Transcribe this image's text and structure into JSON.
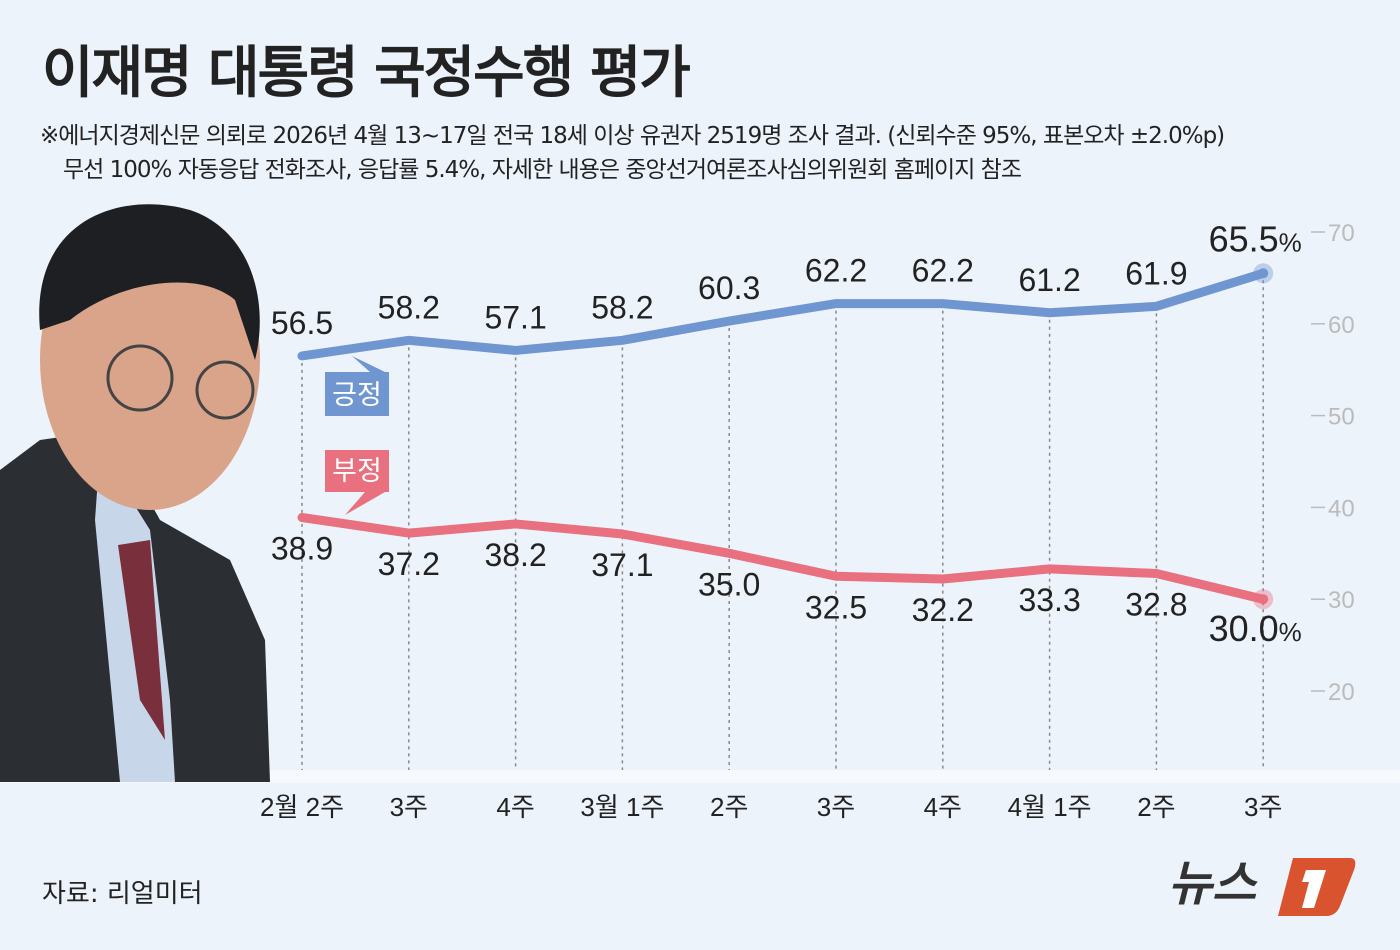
{
  "title": "이재명 대통령 국정수행 평가",
  "notes": [
    "※에너지경제신문 의뢰로 2026년 4월 13~17일 전국 18세 이상 유권자 2519명 조사 결과. (신뢰수준 95%, 표본오차 ±2.0%p)",
    "무선 100% 자동응답 전화조사, 응답률 5.4%, 자세한 내용은 중앙선거여론조사심의위원회 홈페이지 참조"
  ],
  "source": "자료: 리얼미터",
  "logo": "뉴스1",
  "chart_data": {
    "type": "line",
    "categories": [
      "2월 2주",
      "3주",
      "4주",
      "3월 1주",
      "2주",
      "3주",
      "4주",
      "4월 1주",
      "2주",
      "3주"
    ],
    "series": [
      {
        "name": "긍정",
        "color": "#7096d1",
        "values": [
          56.5,
          58.2,
          57.1,
          58.2,
          60.3,
          62.2,
          62.2,
          61.2,
          61.9,
          65.5
        ]
      },
      {
        "name": "부정",
        "color": "#e8707f",
        "values": [
          38.9,
          37.2,
          38.2,
          37.1,
          35.0,
          32.5,
          32.2,
          33.3,
          32.8,
          30.0
        ]
      }
    ],
    "last_label_suffix": "%",
    "yticks": [
      70,
      60,
      50,
      40,
      30,
      20
    ],
    "ylim": [
      20,
      70
    ],
    "grid": "vertical dotted"
  }
}
